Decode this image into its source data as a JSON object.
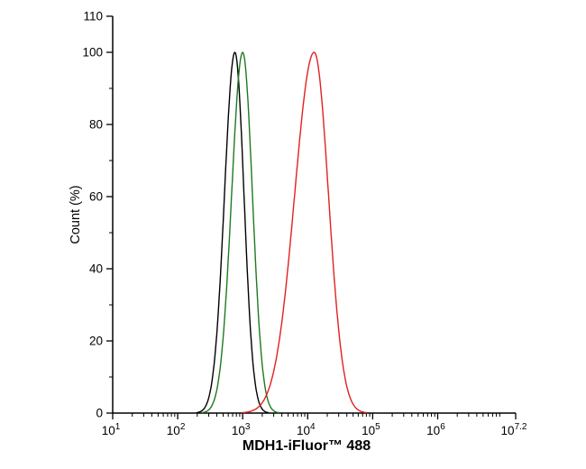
{
  "chart_data": {
    "type": "line",
    "title": "",
    "xlabel": "MDH1-iFluor™ 488",
    "ylabel": "Count  (%)",
    "x_scale": "log10",
    "x_range_log": [
      1,
      7.2
    ],
    "ylim": [
      0,
      110
    ],
    "grid": false,
    "legend": "none",
    "x_ticks": [
      {
        "base": "10",
        "exp": "1",
        "log": 1
      },
      {
        "base": "10",
        "exp": "2",
        "log": 2
      },
      {
        "base": "10",
        "exp": "3",
        "log": 3
      },
      {
        "base": "10",
        "exp": "4",
        "log": 4
      },
      {
        "base": "10",
        "exp": "5",
        "log": 5
      },
      {
        "base": "10",
        "exp": "6",
        "log": 6
      },
      {
        "base": "10",
        "exp": "7.2",
        "log": 7.2
      }
    ],
    "y_ticks": [
      0,
      20,
      40,
      60,
      80,
      100,
      110
    ],
    "y_minor_ticks": [
      10,
      30,
      50,
      70,
      90
    ],
    "series": [
      {
        "name": "unlabelled-control-black",
        "color": "#000000",
        "peak_x": 760,
        "peak_log10_x": 2.88,
        "peak_y": 100,
        "sigma_left": 0.16,
        "sigma_right": 0.14
      },
      {
        "name": "isotype-control-green",
        "color": "#1e7a1e",
        "peak_x": 1000,
        "peak_log10_x": 3.0,
        "peak_y": 100,
        "sigma_left": 0.17,
        "sigma_right": 0.15
      },
      {
        "name": "mdh1-stained-red",
        "color": "#e22020",
        "peak_x": 12600,
        "peak_log10_x": 4.1,
        "peak_y": 100,
        "sigma_left": 0.3,
        "sigma_right": 0.22
      }
    ]
  }
}
